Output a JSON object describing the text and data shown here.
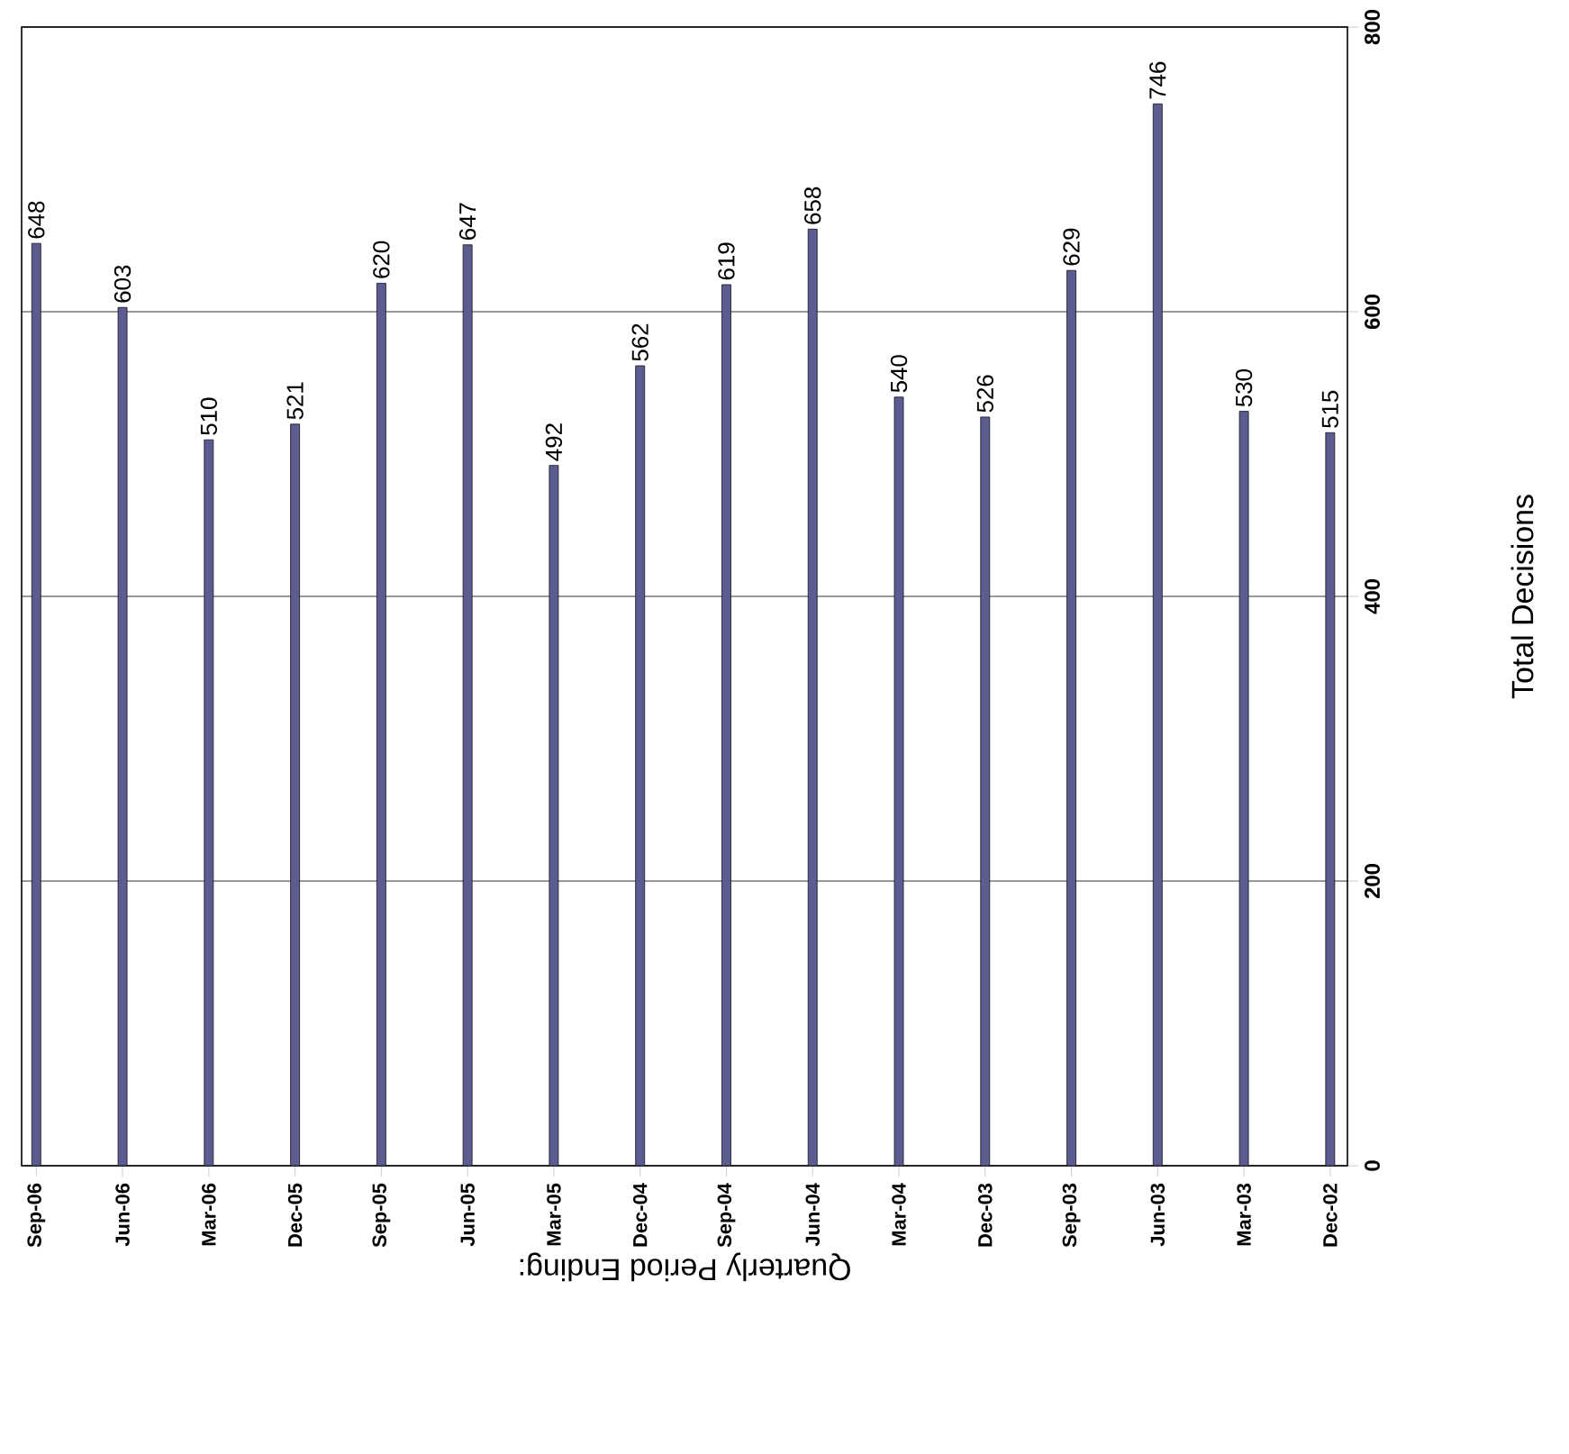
{
  "chart_data": {
    "type": "bar",
    "xlabel": "Quarterly Period Ending:",
    "ylabel": "Total Decisions",
    "categories": [
      "Sep-06",
      "Jun-06",
      "Mar-06",
      "Dec-05",
      "Sep-05",
      "Jun-05",
      "Mar-05",
      "Dec-04",
      "Sep-04",
      "Jun-04",
      "Mar-04",
      "Dec-03",
      "Sep-03",
      "Jun-03",
      "Mar-03",
      "Dec-02"
    ],
    "values": [
      648,
      603,
      510,
      521,
      620,
      647,
      492,
      562,
      619,
      658,
      540,
      526,
      629,
      746,
      530,
      515
    ],
    "color": "#5c5c90",
    "ylim": [
      0,
      800
    ],
    "yticks": [
      0,
      200,
      400,
      600,
      800
    ],
    "grid": "y",
    "data_labels": true
  }
}
